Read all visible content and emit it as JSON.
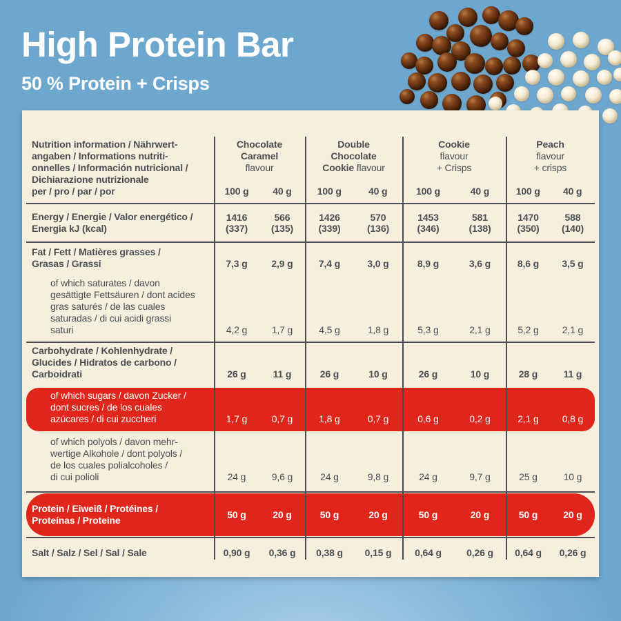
{
  "page": {
    "title": "High Protein Bar",
    "subtitle": "50 % Protein + Crisps"
  },
  "colors": {
    "background_blue": "#6ea7ce",
    "background_glow": "#a9cee9",
    "card_cream": "#f6efde",
    "text_dark": "#4a4e52",
    "highlight_red": "#e0261a",
    "text_on_red": "#ffffff",
    "chocolate_crisp_brown": "#63300f",
    "white_crisp_cream": "#f6edd8"
  },
  "table": {
    "header": {
      "label": "Nutrition information / Nährwert-\nangaben / Informations nutriti-\nonnelles / Información nutricional /\nDichiarazione nutrizionale",
      "per_line": "per / pro / par / por",
      "weight_100": "100 g",
      "weight_40": "40 g",
      "groups": [
        {
          "name_bold": "Chocolate\nCaramel",
          "name_rest": "\nflavour"
        },
        {
          "name_bold": "Double\nChocolate\nCookie",
          "name_rest": " flavour"
        },
        {
          "name_bold": "Cookie",
          "name_rest": "\nflavour\n+ Crisps"
        },
        {
          "name_bold": "Peach",
          "name_rest": "\nflavour\n+ crisps"
        }
      ]
    },
    "rows": {
      "energy": {
        "label": "Energy / Energie / Valor energético /\nEnergia kJ (kcal)",
        "values": [
          "1416\n(337)",
          "566\n(135)",
          "1426\n(339)",
          "570\n(136)",
          "1453\n(346)",
          "581\n(138)",
          "1470\n(350)",
          "588\n(140)"
        ]
      },
      "fat": {
        "label": "Fat / Fett / Matières grasses /\nGrasas / Grassi",
        "values": [
          "7,3 g",
          "2,9 g",
          "7,4 g",
          "3,0 g",
          "8,9 g",
          "3,6 g",
          "8,6 g",
          "3,5 g"
        ]
      },
      "saturates": {
        "label": "of which saturates / davon\ngesättigte Fettsäuren / dont acides\ngras saturés / de las cuales\nsaturadas / di cui acidi grassi\nsaturi",
        "values": [
          "4,2 g",
          "1,7 g",
          "4,5 g",
          "1,8 g",
          "5,3 g",
          "2,1 g",
          "5,2 g",
          "2,1 g"
        ]
      },
      "carbohydrate": {
        "label": "Carbohydrate / Kohlenhydrate /\nGlucides / Hidratos de carbono /\nCarboidrati",
        "values": [
          "26 g",
          "11 g",
          "26 g",
          "10 g",
          "26 g",
          "10 g",
          "28 g",
          "11 g"
        ]
      },
      "sugars": {
        "label": "of which sugars / davon Zucker /\ndont sucres / de los cuales\nazúcares / di cui zuccheri",
        "values": [
          "1,7 g",
          "0,7 g",
          "1,8 g",
          "0,7 g",
          "0,6 g",
          "0,2 g",
          "2,1 g",
          "0,8 g"
        ]
      },
      "polyols": {
        "label": "of which polyols / davon mehr-\nwertige Alkohole / dont polyols /\nde los cuales polialcoholes /\ndi cui polioli",
        "values": [
          "24 g",
          "9,6 g",
          "24 g",
          "9,8 g",
          "24 g",
          "9,7 g",
          "25 g",
          "10 g"
        ]
      },
      "protein": {
        "label": "Protein / Eiweiß / Protéines /\nProteínas / Proteine",
        "values": [
          "50 g",
          "20 g",
          "50 g",
          "20 g",
          "50 g",
          "20 g",
          "50 g",
          "20 g"
        ]
      },
      "salt": {
        "label": "Salt / Salz / Sel / Sal / Sale",
        "values": [
          "0,90 g",
          "0,36 g",
          "0,38 g",
          "0,15 g",
          "0,64 g",
          "0,26 g",
          "0,64 g",
          "0,26 g"
        ]
      }
    }
  }
}
